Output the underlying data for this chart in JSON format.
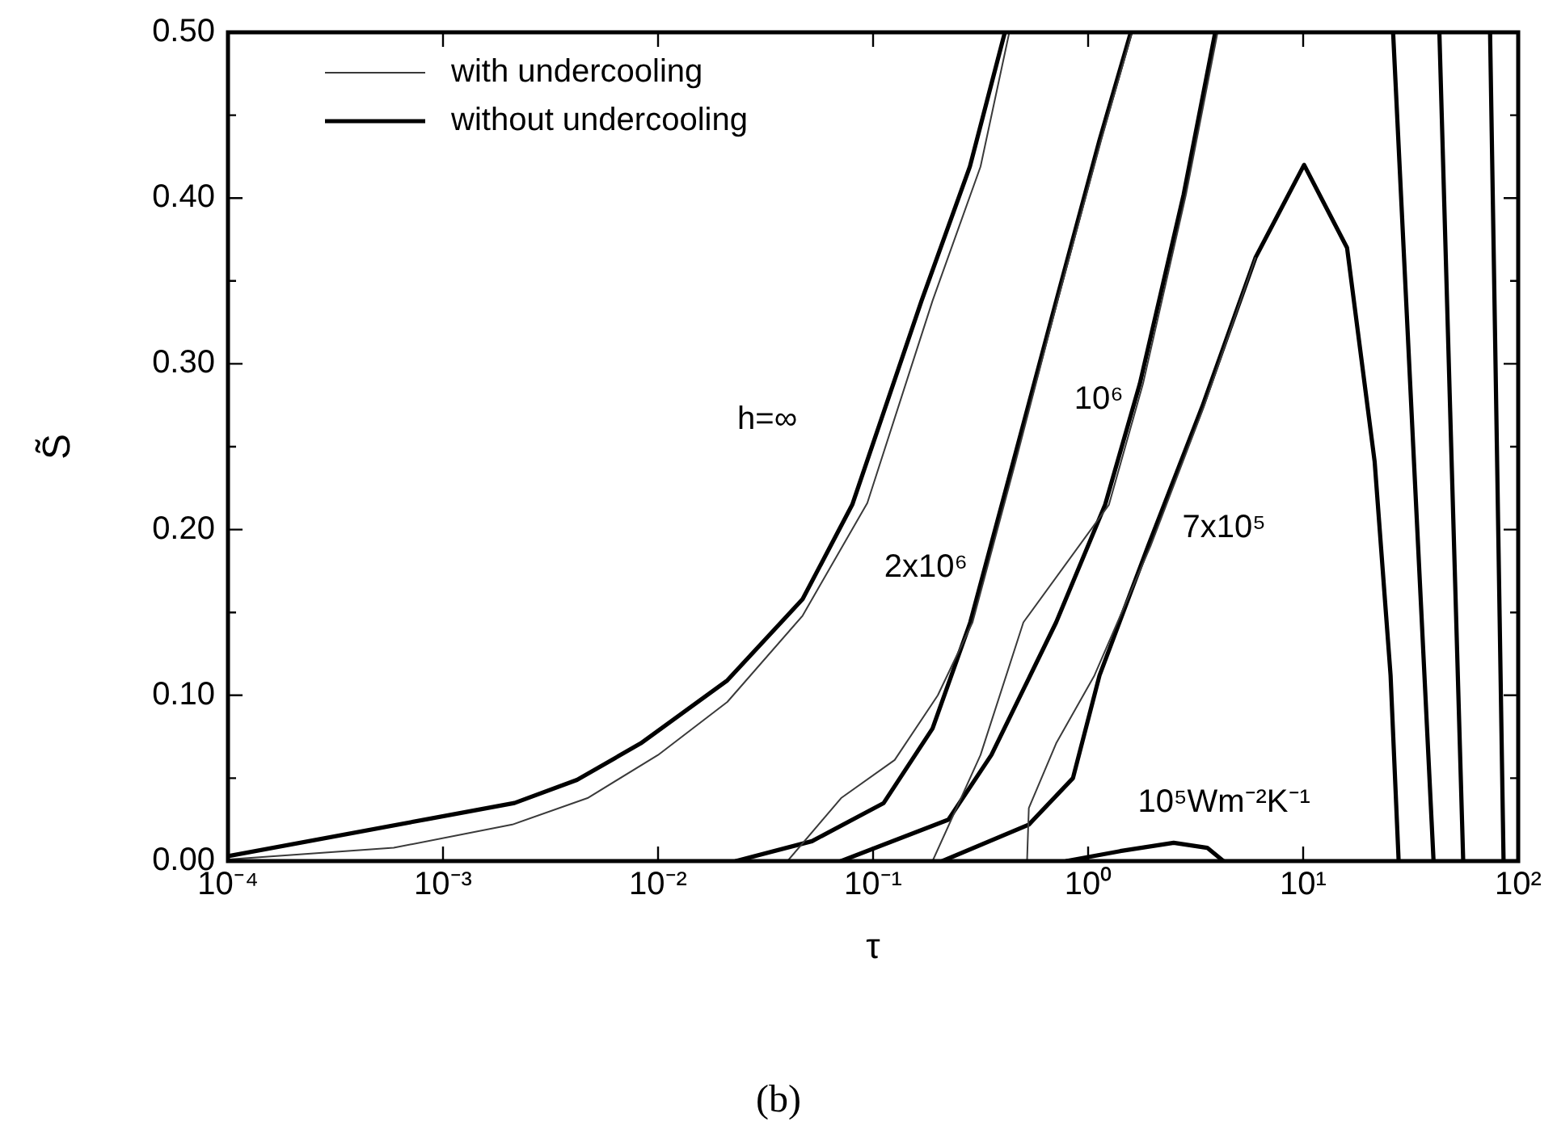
{
  "chart_data": {
    "type": "line",
    "xlabel": "τ",
    "ylabel": "S̃",
    "log": "x",
    "legend": "top left",
    "marker": "none",
    "line_style": "solid",
    "grid": false,
    "xlim": [
      0.0001,
      100
    ],
    "ylim": [
      0,
      0.5
    ],
    "xticks": [
      {
        "value": 0.0001,
        "label": "10⁻⁴"
      },
      {
        "value": 0.001,
        "label": "10⁻³"
      },
      {
        "value": 0.01,
        "label": "10⁻²"
      },
      {
        "value": 0.1,
        "label": "10⁻¹"
      },
      {
        "value": 1,
        "label": "10⁰"
      },
      {
        "value": 10,
        "label": "10¹"
      },
      {
        "value": 100,
        "label": "10²"
      }
    ],
    "yticks": [
      {
        "value": 0,
        "label": "0.00"
      },
      {
        "value": 0.05,
        "label": null
      },
      {
        "value": 0.1,
        "label": "0.10"
      },
      {
        "value": 0.15,
        "label": null
      },
      {
        "value": 0.2,
        "label": "0.20"
      },
      {
        "value": 0.25,
        "label": null
      },
      {
        "value": 0.3,
        "label": "0.30"
      },
      {
        "value": 0.35,
        "label": null
      },
      {
        "value": 0.4,
        "label": "0.40"
      },
      {
        "value": 0.45,
        "label": null
      },
      {
        "value": 0.5,
        "label": "0.50"
      }
    ],
    "series": [
      {
        "name": "with undercooling",
        "color": "#3a3a3a",
        "x": [
          0.0001,
          0.00059,
          0.0021,
          0.0047,
          0.01,
          0.021,
          0.047,
          0.094,
          0.189,
          0.316,
          0.43,
          null,
          0.04,
          0.071,
          0.126,
          0.2,
          0.29,
          0.46,
          0.72,
          1.15,
          1.6,
          null,
          0.189,
          0.316,
          0.5,
          1.25,
          1.8,
          2.85,
          4.0,
          null,
          0.52,
          0.53,
          0.71,
          1.07,
          1.95,
          3.45,
          6.0
        ],
        "values": [
          0.001,
          0.008,
          0.022,
          0.038,
          0.064,
          0.096,
          0.148,
          0.216,
          0.338,
          0.419,
          0.5,
          null,
          0,
          0.038,
          0.061,
          0.1,
          0.144,
          0.241,
          0.338,
          0.435,
          0.5,
          null,
          0,
          0.064,
          0.144,
          0.215,
          0.288,
          0.402,
          0.5,
          null,
          0,
          0.032,
          0.071,
          0.112,
          0.19,
          0.274,
          0.364
        ]
      },
      {
        "name": "without undercooling",
        "color": "#000000",
        "x": [
          0.0001,
          0.00215,
          0.0042,
          0.0083,
          0.021,
          0.047,
          0.08,
          0.168,
          0.282,
          0.41,
          null,
          74,
          79.6,
          85.5,
          null,
          0.023,
          0.052,
          0.112,
          0.189,
          0.283,
          0.449,
          0.711,
          1.13,
          1.58,
          null,
          43,
          48.8,
          55.5,
          null,
          0.071,
          0.224,
          0.355,
          0.71,
          1.2,
          1.74,
          2.78,
          3.9,
          null,
          26.2,
          32.5,
          40.4,
          null,
          0.21,
          0.53,
          0.85,
          1.13,
          1.9,
          3.39,
          6.0,
          10.1,
          16,
          21.5,
          25.5,
          27.8,
          null,
          0.79,
          1.41,
          2.5,
          3.58,
          4.26
        ],
        "values": [
          0.003,
          0.035,
          0.049,
          0.071,
          0.109,
          0.158,
          0.215,
          0.338,
          0.419,
          0.5,
          null,
          0.5,
          0.25,
          0,
          null,
          0,
          0.012,
          0.035,
          0.08,
          0.144,
          0.241,
          0.338,
          0.435,
          0.5,
          null,
          0.5,
          0.25,
          0,
          null,
          0,
          0.025,
          0.064,
          0.144,
          0.215,
          0.288,
          0.402,
          0.5,
          null,
          0.5,
          0.25,
          0,
          null,
          0,
          0.022,
          0.05,
          0.112,
          0.19,
          0.274,
          0.364,
          0.42,
          0.37,
          0.241,
          0.112,
          0,
          null,
          0,
          0.006,
          0.011,
          0.008,
          0
        ]
      }
    ],
    "annotations": [
      "h=∞",
      "2x10⁶",
      "10⁶",
      "7x10⁵",
      "10⁵Wm⁻²K⁻¹",
      "(b)"
    ]
  }
}
